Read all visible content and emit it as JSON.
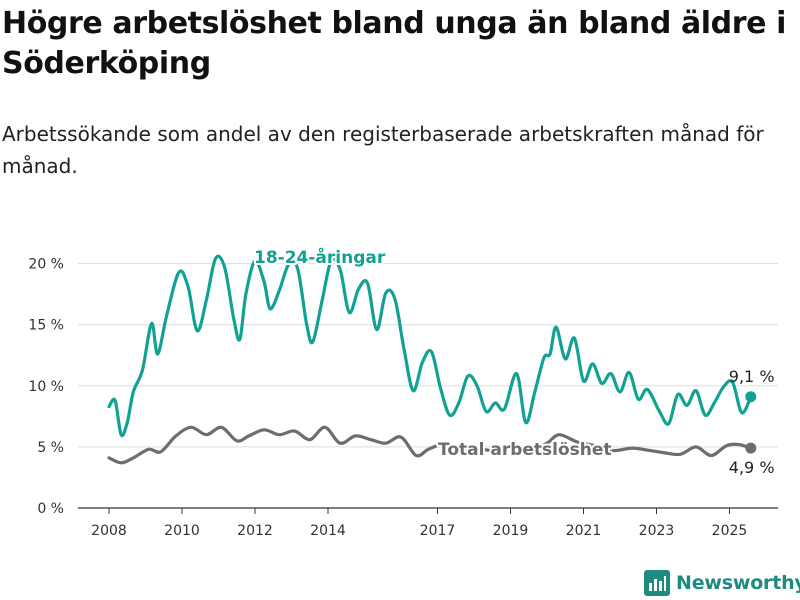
{
  "header": {
    "title": "Högre arbetslöshet bland unga än bland äldre i Söderköping",
    "subtitle": "Arbetssökande som andel av den registerbaserade arbetskraften månad för månad."
  },
  "brand": {
    "name": "Newsworthy",
    "icon": "newsworthy-logo-icon"
  },
  "colors": {
    "youth": "#12a294",
    "total": "#6c6c71",
    "grid": "#dddddd"
  },
  "chart_data": {
    "type": "line",
    "title": "Högre arbetslöshet bland unga än bland äldre i Söderköping",
    "subtitle": "Arbetssökande som andel av den registerbaserade arbetskraften månad för månad.",
    "xlabel": "",
    "ylabel": "",
    "x_ticks": [
      "2008",
      "2010",
      "2012",
      "2014",
      "2017",
      "2019",
      "2021",
      "2023",
      "2025"
    ],
    "y_ticks": [
      "0 %",
      "5 %",
      "10 %",
      "15 %",
      "20 %"
    ],
    "ylim": [
      0,
      22
    ],
    "grid": true,
    "legend": "inline labels",
    "series": [
      {
        "name": "18-24-åringar",
        "color": "#12a294",
        "end_label": "9,1 %",
        "points": [
          [
            "2008-01",
            8.3
          ],
          [
            "2008-03",
            8.8
          ],
          [
            "2008-05",
            6.0
          ],
          [
            "2008-07",
            7.0
          ],
          [
            "2008-09",
            9.5
          ],
          [
            "2008-12",
            11.3
          ],
          [
            "2009-03",
            15.1
          ],
          [
            "2009-05",
            12.6
          ],
          [
            "2009-08",
            15.8
          ],
          [
            "2009-12",
            19.3
          ],
          [
            "2010-03",
            18.1
          ],
          [
            "2010-06",
            14.5
          ],
          [
            "2010-09",
            17.0
          ],
          [
            "2010-12",
            20.4
          ],
          [
            "2011-03",
            19.7
          ],
          [
            "2011-06",
            15.5
          ],
          [
            "2011-08",
            13.8
          ],
          [
            "2011-10",
            17.5
          ],
          [
            "2012-01",
            20.2
          ],
          [
            "2012-04",
            18.5
          ],
          [
            "2012-06",
            16.3
          ],
          [
            "2012-09",
            17.8
          ],
          [
            "2012-12",
            19.9
          ],
          [
            "2013-03",
            19.6
          ],
          [
            "2013-06",
            15.0
          ],
          [
            "2013-08",
            13.6
          ],
          [
            "2013-11",
            16.9
          ],
          [
            "2014-02",
            20.2
          ],
          [
            "2014-05",
            19.5
          ],
          [
            "2014-08",
            16.0
          ],
          [
            "2014-11",
            17.9
          ],
          [
            "2015-02",
            18.4
          ],
          [
            "2015-05",
            14.6
          ],
          [
            "2015-08",
            17.6
          ],
          [
            "2015-11",
            17.1
          ],
          [
            "2016-02",
            13.0
          ],
          [
            "2016-05",
            9.6
          ],
          [
            "2016-08",
            11.9
          ],
          [
            "2016-11",
            12.8
          ],
          [
            "2017-02",
            9.8
          ],
          [
            "2017-05",
            7.6
          ],
          [
            "2017-08",
            8.6
          ],
          [
            "2017-11",
            10.8
          ],
          [
            "2018-02",
            10.0
          ],
          [
            "2018-05",
            7.9
          ],
          [
            "2018-08",
            8.6
          ],
          [
            "2018-11",
            8.1
          ],
          [
            "2019-03",
            11.0
          ],
          [
            "2019-06",
            7.0
          ],
          [
            "2019-09",
            9.5
          ],
          [
            "2019-12",
            12.3
          ],
          [
            "2020-02",
            12.6
          ],
          [
            "2020-04",
            14.8
          ],
          [
            "2020-07",
            12.2
          ],
          [
            "2020-10",
            13.9
          ],
          [
            "2021-01",
            10.4
          ],
          [
            "2021-04",
            11.8
          ],
          [
            "2021-07",
            10.2
          ],
          [
            "2021-10",
            11.0
          ],
          [
            "2022-01",
            9.5
          ],
          [
            "2022-04",
            11.1
          ],
          [
            "2022-07",
            8.9
          ],
          [
            "2022-10",
            9.7
          ],
          [
            "2023-02",
            7.9
          ],
          [
            "2023-05",
            6.9
          ],
          [
            "2023-08",
            9.3
          ],
          [
            "2023-11",
            8.4
          ],
          [
            "2024-02",
            9.6
          ],
          [
            "2024-05",
            7.6
          ],
          [
            "2024-08",
            8.6
          ],
          [
            "2024-11",
            9.9
          ],
          [
            "2025-02",
            10.3
          ],
          [
            "2025-05",
            7.8
          ],
          [
            "2025-08",
            9.1
          ]
        ]
      },
      {
        "name": "Total arbetslöshet",
        "color": "#6c6c71",
        "end_label": "4,9 %",
        "points": [
          [
            "2008-01",
            4.1
          ],
          [
            "2008-05",
            3.7
          ],
          [
            "2008-09",
            4.1
          ],
          [
            "2009-02",
            4.8
          ],
          [
            "2009-06",
            4.6
          ],
          [
            "2009-11",
            5.9
          ],
          [
            "2010-04",
            6.6
          ],
          [
            "2010-09",
            6.0
          ],
          [
            "2011-02",
            6.6
          ],
          [
            "2011-07",
            5.5
          ],
          [
            "2011-11",
            5.9
          ],
          [
            "2012-04",
            6.4
          ],
          [
            "2012-09",
            6.0
          ],
          [
            "2013-02",
            6.3
          ],
          [
            "2013-07",
            5.6
          ],
          [
            "2013-12",
            6.6
          ],
          [
            "2014-05",
            5.3
          ],
          [
            "2014-10",
            5.9
          ],
          [
            "2015-03",
            5.6
          ],
          [
            "2015-08",
            5.3
          ],
          [
            "2016-01",
            5.8
          ],
          [
            "2016-06",
            4.3
          ],
          [
            "2016-10",
            4.8
          ],
          [
            "2017-03",
            5.2
          ],
          [
            "2017-08",
            4.6
          ],
          [
            "2018-01",
            4.9
          ],
          [
            "2018-07",
            4.7
          ],
          [
            "2019-01",
            4.9
          ],
          [
            "2019-07",
            4.6
          ],
          [
            "2020-01",
            5.3
          ],
          [
            "2020-05",
            6.0
          ],
          [
            "2020-11",
            5.4
          ],
          [
            "2021-05",
            5.1
          ],
          [
            "2021-11",
            4.7
          ],
          [
            "2022-05",
            4.9
          ],
          [
            "2022-11",
            4.7
          ],
          [
            "2023-04",
            4.5
          ],
          [
            "2023-09",
            4.4
          ],
          [
            "2024-02",
            5.0
          ],
          [
            "2024-07",
            4.3
          ],
          [
            "2024-12",
            5.1
          ],
          [
            "2025-04",
            5.2
          ],
          [
            "2025-08",
            4.9
          ]
        ]
      }
    ]
  }
}
